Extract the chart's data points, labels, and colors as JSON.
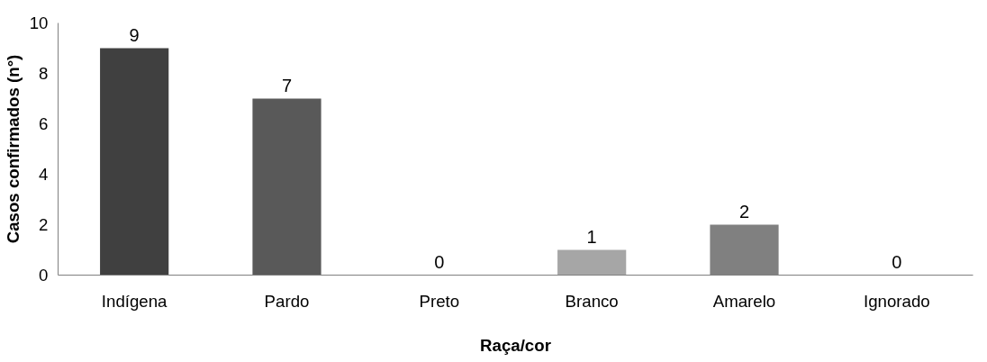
{
  "chart_data": {
    "type": "bar",
    "xlabel": "Raça/cor",
    "ylabel": "Casos confirmados (n°)",
    "categories": [
      "Indígena",
      "Pardo",
      "Preto",
      "Branco",
      "Amarelo",
      "Ignorado"
    ],
    "values": [
      9,
      7,
      0,
      1,
      2,
      0
    ],
    "colors": [
      "#404040",
      "#595959",
      "#262626",
      "#a6a6a6",
      "#808080",
      "#d9d9d9"
    ],
    "ylim": [
      0,
      10
    ],
    "yticks": [
      0,
      2,
      4,
      6,
      8,
      10
    ],
    "grid": false,
    "data_labels": true
  }
}
